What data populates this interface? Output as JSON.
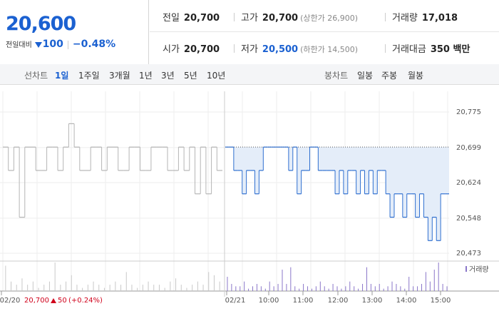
{
  "quote": {
    "price": "20,600",
    "change_label": "전일대비",
    "change": "100",
    "rate": "−0.48%"
  },
  "summary": {
    "rows": [
      [
        {
          "label": "전일",
          "value": "20,700"
        },
        {
          "label": "고가",
          "value": "20,700",
          "note": "(상한가 26,900)"
        },
        {
          "label": "거래량",
          "value": "17,018"
        }
      ],
      [
        {
          "label": "시가",
          "value": "20,700"
        },
        {
          "label": "저가",
          "value": "20,500",
          "note": "(하한가 14,500)"
        },
        {
          "label": "거래대금",
          "value": "350 백만"
        }
      ]
    ]
  },
  "tabs": {
    "line_label": "선차트",
    "line": [
      "1일",
      "1주일",
      "3개월",
      "1년",
      "3년",
      "5년",
      "10년"
    ],
    "candle_label": "봉차트",
    "candle": [
      "일봉",
      "주봉",
      "월봉"
    ]
  },
  "chart_data": {
    "type": "line",
    "ylim": [
      20473,
      20775
    ],
    "yticks": [
      {
        "value": 20775,
        "label": "20,775"
      },
      {
        "value": 20699,
        "label": "20,699"
      },
      {
        "value": 20624,
        "label": "20,624"
      },
      {
        "value": 20548,
        "label": "20,548"
      },
      {
        "value": 20473,
        "label": "20,473"
      }
    ],
    "reference": {
      "value": 20700,
      "label": "20,700"
    },
    "x_labels": [
      "02/20",
      "02/21",
      "10:00",
      "11:00",
      "12:00",
      "13:00",
      "14:00",
      "15:00"
    ],
    "previous_change": "50",
    "previous_rate": "(+0.24%)",
    "volume_legend": "거래량",
    "series": [
      {
        "color": "#b5b5b5",
        "volume_color": "#c8c8c8",
        "values": [
          20700,
          20650,
          20700,
          20550,
          20700,
          20700,
          20650,
          20650,
          20700,
          20700,
          20650,
          20700,
          20750,
          20700,
          20650,
          20650,
          20700,
          20700,
          20650,
          20700,
          20700,
          20650,
          20650,
          20700,
          20700,
          20650,
          20650,
          20700,
          20700,
          20700,
          20650,
          20650,
          20700,
          20650,
          20700,
          20600,
          20700,
          20600,
          20700,
          20650
        ],
        "volume": [
          8,
          3,
          2,
          4,
          2,
          3,
          1,
          2,
          3,
          9,
          2,
          3,
          5,
          2,
          1,
          2,
          3,
          2,
          1,
          2,
          3,
          2,
          6,
          2,
          1,
          2,
          3,
          2,
          2,
          1,
          3,
          4,
          2,
          1,
          2,
          3,
          2,
          6,
          5,
          3
        ]
      },
      {
        "color": "#2f6fd0",
        "fill": "#e4edf9",
        "volume_color": "#8a76c9",
        "values": [
          20700,
          20700,
          20650,
          20650,
          20600,
          20650,
          20650,
          20600,
          20650,
          20700,
          20700,
          20700,
          20700,
          20700,
          20700,
          20650,
          20700,
          20600,
          20650,
          20650,
          20700,
          20700,
          20650,
          20650,
          20650,
          20650,
          20600,
          20650,
          20600,
          20650,
          20650,
          20600,
          20650,
          20600,
          20650,
          20600,
          20650,
          20650,
          20600,
          20550,
          20600,
          20600,
          20550,
          20600,
          20600,
          20550,
          20600,
          20550,
          20500,
          20550,
          20500,
          20600,
          20600
        ],
        "volume": [
          6,
          3,
          2,
          2,
          4,
          1,
          2,
          3,
          2,
          1,
          4,
          2,
          3,
          9,
          3,
          10,
          2,
          1,
          3,
          2,
          1,
          2,
          4,
          2,
          1,
          3,
          2,
          1,
          2,
          4,
          2,
          1,
          3,
          10,
          3,
          2,
          3,
          1,
          2,
          4,
          3,
          2,
          1,
          6,
          2,
          2,
          3,
          8,
          4,
          9,
          12,
          3,
          2
        ]
      }
    ]
  }
}
